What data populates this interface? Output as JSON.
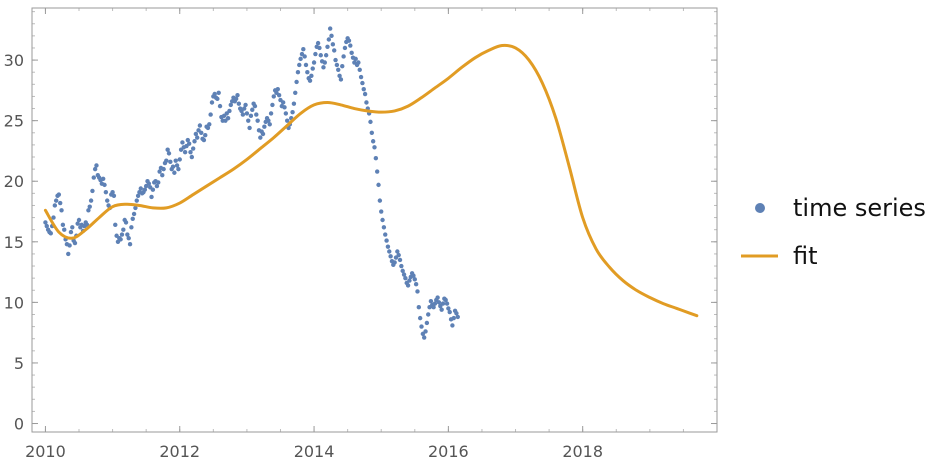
{
  "colors": {
    "points": "#5e81b5",
    "fit": "#e19c24",
    "frame": "#9a9a9a",
    "tick_text": "#555555"
  },
  "legend": {
    "series_label": "time series",
    "fit_label": "fit"
  },
  "chart_data": {
    "type": "scatter",
    "title": "",
    "xlabel": "",
    "ylabel": "",
    "xlim": [
      2009.8,
      2020.0
    ],
    "ylim": [
      -0.7,
      34.3
    ],
    "x_ticks": [
      "2010",
      "2012",
      "2014",
      "2016",
      "2018"
    ],
    "y_ticks": [
      "0",
      "5",
      "10",
      "15",
      "20",
      "25",
      "30"
    ],
    "grid": false,
    "legend_position": "right",
    "x_tick_values": [
      2010,
      2012,
      2014,
      2016,
      2018
    ],
    "y_tick_values": [
      0,
      5,
      10,
      15,
      20,
      25,
      30
    ],
    "x_minor_step": 0.5,
    "y_minor_step": 1,
    "series": [
      {
        "name": "time series",
        "type": "scatter",
        "start_year": 2010.0,
        "step_years": 0.02,
        "values": [
          16.6,
          16.3,
          16.0,
          15.8,
          15.7,
          16.3,
          17.0,
          18.0,
          18.4,
          18.8,
          18.9,
          18.2,
          17.6,
          16.4,
          16.0,
          15.2,
          14.8,
          14.0,
          14.7,
          15.8,
          16.2,
          15.1,
          14.9,
          15.5,
          16.5,
          16.8,
          16.2,
          16.4,
          15.9,
          16.3,
          16.6,
          16.4,
          17.6,
          17.9,
          18.4,
          19.2,
          20.3,
          21.0,
          21.3,
          20.5,
          20.3,
          20.1,
          19.8,
          20.2,
          19.7,
          19.1,
          18.4,
          18.0,
          17.8,
          18.9,
          19.1,
          18.8,
          16.4,
          15.5,
          15.0,
          15.3,
          15.2,
          15.6,
          16.0,
          16.8,
          16.6,
          15.6,
          15.3,
          14.8,
          16.2,
          16.9,
          17.3,
          17.8,
          18.4,
          18.8,
          19.1,
          19.4,
          19.0,
          19.1,
          19.3,
          19.6,
          20.0,
          19.8,
          19.5,
          18.7,
          19.3,
          19.9,
          20.0,
          19.6,
          19.9,
          20.8,
          21.1,
          20.5,
          21.0,
          21.5,
          21.7,
          22.6,
          22.3,
          21.6,
          21.0,
          21.2,
          20.7,
          21.7,
          21.3,
          21.0,
          21.8,
          22.6,
          23.2,
          22.8,
          22.4,
          22.9,
          23.4,
          23.1,
          22.4,
          22.0,
          22.7,
          23.3,
          23.9,
          23.6,
          24.2,
          24.6,
          24.0,
          23.5,
          23.4,
          23.8,
          24.5,
          24.4,
          24.7,
          25.5,
          26.5,
          27.0,
          27.2,
          26.9,
          26.8,
          27.3,
          26.2,
          25.3,
          25.0,
          25.4,
          25.0,
          25.6,
          25.2,
          25.8,
          26.3,
          26.6,
          26.9,
          26.6,
          26.8,
          27.1,
          26.4,
          26.0,
          25.8,
          25.5,
          26.0,
          26.3,
          25.6,
          25.0,
          24.4,
          25.4,
          25.9,
          26.4,
          26.2,
          25.5,
          25.0,
          24.2,
          23.6,
          24.1,
          23.9,
          24.5,
          24.9,
          25.2,
          25.0,
          24.7,
          25.6,
          26.3,
          27.0,
          27.5,
          27.3,
          27.6,
          27.1,
          26.7,
          26.2,
          26.5,
          26.1,
          25.6,
          25.0,
          24.4,
          24.7,
          25.2,
          25.7,
          26.4,
          27.3,
          28.2,
          29.0,
          29.6,
          30.1,
          30.5,
          30.9,
          30.3,
          29.6,
          29.0,
          28.5,
          28.3,
          28.7,
          29.3,
          29.8,
          30.5,
          31.1,
          31.4,
          31.0,
          30.4,
          29.9,
          29.4,
          29.8,
          30.4,
          31.1,
          31.7,
          32.6,
          32.0,
          31.3,
          30.8,
          30.0,
          29.6,
          29.2,
          28.7,
          28.4,
          29.5,
          30.3,
          31.0,
          31.5,
          31.8,
          31.6,
          31.2,
          30.6,
          30.2,
          29.8,
          30.1,
          29.6,
          29.8,
          29.2,
          28.6,
          28.1,
          27.6,
          27.2,
          26.5,
          26.0,
          25.6,
          24.9,
          24.0,
          23.3,
          22.8,
          21.9,
          20.8,
          19.7,
          18.4,
          17.5,
          16.8,
          16.2,
          15.6,
          15.1,
          14.6,
          14.2,
          13.8,
          13.4,
          13.1,
          13.3,
          13.7,
          14.2,
          13.9,
          13.5,
          13.0,
          12.6,
          12.3,
          12.0,
          11.6,
          11.4,
          11.8,
          12.1,
          12.4,
          12.2,
          11.9,
          11.5,
          10.9,
          9.6,
          8.7,
          8.0,
          7.4,
          7.1,
          7.6,
          8.3,
          9.0,
          9.6,
          10.1,
          9.8,
          9.6,
          9.9,
          10.2,
          10.4,
          10.0,
          9.7,
          9.4,
          9.9,
          10.3,
          10.2,
          9.9,
          9.5,
          9.2,
          8.6,
          8.1,
          8.7,
          9.3,
          9.1,
          8.8
        ]
      },
      {
        "name": "fit",
        "type": "line",
        "x": [
          2010.0,
          2010.2,
          2010.4,
          2010.6,
          2010.8,
          2011.0,
          2011.2,
          2011.4,
          2011.6,
          2011.8,
          2012.0,
          2012.2,
          2012.4,
          2012.6,
          2012.8,
          2013.0,
          2013.2,
          2013.4,
          2013.6,
          2013.8,
          2014.0,
          2014.2,
          2014.4,
          2014.6,
          2014.8,
          2015.0,
          2015.2,
          2015.4,
          2015.6,
          2015.8,
          2016.0,
          2016.2,
          2016.4,
          2016.6,
          2016.8,
          2017.0,
          2017.2,
          2017.4,
          2017.6,
          2017.8,
          2018.0,
          2018.2,
          2018.4,
          2018.6,
          2018.8,
          2019.0,
          2019.2,
          2019.4,
          2019.6,
          2019.7
        ],
        "values": [
          17.6,
          15.8,
          15.3,
          16.0,
          17.0,
          17.9,
          18.1,
          18.0,
          17.8,
          17.8,
          18.2,
          18.9,
          19.6,
          20.3,
          21.0,
          21.8,
          22.7,
          23.6,
          24.6,
          25.6,
          26.3,
          26.5,
          26.3,
          26.0,
          25.8,
          25.7,
          25.8,
          26.2,
          26.9,
          27.7,
          28.5,
          29.4,
          30.2,
          30.8,
          31.2,
          31.0,
          30.0,
          28.1,
          25.2,
          21.2,
          17.0,
          14.4,
          12.9,
          11.8,
          11.0,
          10.4,
          9.9,
          9.5,
          9.1,
          8.9
        ]
      }
    ]
  }
}
